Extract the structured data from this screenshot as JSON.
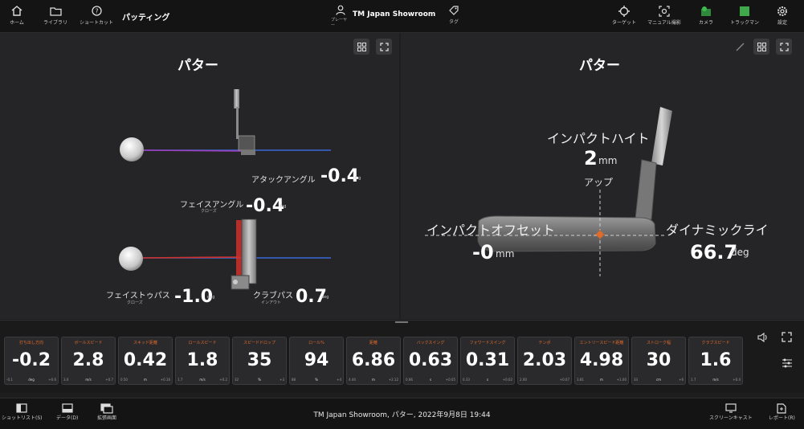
{
  "topbar": {
    "home": "ホーム",
    "library": "ライブラリ",
    "shortcut": "ショートカット",
    "mode_title": "パッティング",
    "player_label": "プレーヤー",
    "location": "TM Japan Showroom",
    "tag": "タグ",
    "target": "ターゲット",
    "manual": "マニュアル撮影",
    "camera": "カメラ",
    "trackman": "トラックマン",
    "settings": "設定"
  },
  "left_panel": {
    "title": "パター",
    "attack_angle": {
      "label": "アタックアングル",
      "value": "-0.4",
      "unit": "deg"
    },
    "face_angle": {
      "label": "フェイスアングル",
      "sub": "クローズ",
      "value": "-0.4",
      "unit": "deg"
    },
    "face_to_path": {
      "label": "フェイストゥパス",
      "sub": "クローズ",
      "value": "-1.0",
      "unit": "deg"
    },
    "club_path": {
      "label": "クラブパス",
      "sub": "インアウト",
      "value": "0.7",
      "unit": "deg"
    }
  },
  "right_panel": {
    "title": "パター",
    "impact_height": {
      "label": "インパクトハイト",
      "value": "2",
      "unit": "mm",
      "sub": "アップ"
    },
    "impact_offset": {
      "label": "インパクトオフセット",
      "value": "-0",
      "unit": "mm"
    },
    "dynamic_lie": {
      "label": "ダイナミックライ",
      "value": "66.7",
      "unit": "deg"
    }
  },
  "stats": [
    {
      "name": "打ち出し方向",
      "value": "-0.2",
      "low": "-0.1",
      "unit": "deg",
      "high": "+0.6"
    },
    {
      "name": "ボールスピード",
      "value": "2.8",
      "low": "3.0",
      "unit": "m/s",
      "high": "+0.7"
    },
    {
      "name": "スキッド距離",
      "value": "0.42",
      "low": "0.50",
      "unit": "m",
      "high": "+0.16"
    },
    {
      "name": "ロールスピード",
      "value": "1.8",
      "low": "1.7",
      "unit": "m/s",
      "high": "+0.2"
    },
    {
      "name": "スピードドロップ",
      "value": "35",
      "low": "32",
      "unit": "%",
      "high": "+3"
    },
    {
      "name": "ロール%",
      "value": "94",
      "low": "88",
      "unit": "%",
      "high": "+4"
    },
    {
      "name": "距離",
      "value": "6.86",
      "low": "4.44",
      "unit": "m",
      "high": "+2.12"
    },
    {
      "name": "バックスイング",
      "value": "0.63",
      "low": "0.66",
      "unit": "s",
      "high": "+0.05"
    },
    {
      "name": "フォワードスイング",
      "value": "0.31",
      "low": "0.33",
      "unit": "s",
      "high": "+0.02"
    },
    {
      "name": "テンポ",
      "value": "2.03",
      "low": "2.00",
      "unit": "",
      "high": "+0.07"
    },
    {
      "name": "エントリースピード距離",
      "value": "4.98",
      "low": "3.81",
      "unit": "m",
      "high": "+1.00"
    },
    {
      "name": "ストローク幅",
      "value": "30",
      "low": "33",
      "unit": "cm",
      "high": "+6"
    },
    {
      "name": "クラブスピード",
      "value": "1.6",
      "low": "1.7",
      "unit": "m/s",
      "high": "+0.4"
    }
  ],
  "footer": {
    "shot_list": "ショットリスト(S)",
    "data": "データ(D)",
    "screen": "拡張画面",
    "center": "TM Japan Showroom, パター, 2022年9月8日 19:44",
    "screencast": "スクリーンキャスト",
    "report": "レポート(R)"
  },
  "icons": [
    "home-icon",
    "folder-icon",
    "help-icon",
    "person-icon",
    "tag-icon",
    "target-icon",
    "manual-capture-icon",
    "camera-icon",
    "trackman-icon",
    "settings-icon",
    "grid-icon",
    "expand-icon",
    "pencil-icon",
    "speaker-icon",
    "sliders-icon",
    "panel-icon",
    "data-icon",
    "screen-icon",
    "screencast-icon",
    "report-icon"
  ],
  "colors": {
    "accent": "#e06a2a",
    "face_line": "#d0302a",
    "path_line": "#3a6ad8",
    "attack_line": "#a040c0",
    "bg": "#1e1e1f"
  }
}
